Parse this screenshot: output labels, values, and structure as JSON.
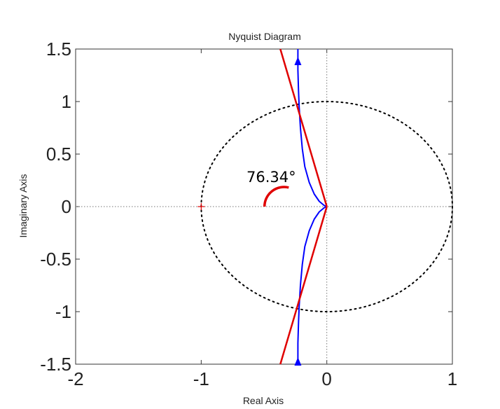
{
  "chart_data": {
    "type": "line",
    "title": "Nyquist Diagram",
    "xlabel": "Real Axis",
    "ylabel": "Imaginary Axis",
    "xlim": [
      -2,
      1
    ],
    "ylim": [
      -1.5,
      1.5
    ],
    "xticks": [
      -2,
      -1,
      0,
      1
    ],
    "xtick_labels": [
      "-2",
      "-1",
      "0",
      "1"
    ],
    "yticks": [
      -1.5,
      -1,
      -0.5,
      0,
      0.5,
      1,
      1.5
    ],
    "ytick_labels": [
      "-1.5",
      "-1",
      "-0.5",
      "0",
      "0.5",
      "1",
      "1.5"
    ],
    "grid": false,
    "critical_point": {
      "x": -1,
      "y": 0,
      "color": "#e00000"
    },
    "unit_circle": {
      "center": [
        0,
        0
      ],
      "radius": 1,
      "color": "#000000"
    },
    "nyquist_upper": {
      "color": "#0000ff",
      "points": [
        [
          -0.23,
          1.5
        ],
        [
          -0.23,
          1.3
        ],
        [
          -0.225,
          1.1
        ],
        [
          -0.22,
          0.95
        ],
        [
          -0.21,
          0.75
        ],
        [
          -0.195,
          0.55
        ],
        [
          -0.175,
          0.38
        ],
        [
          -0.14,
          0.23
        ],
        [
          -0.1,
          0.12
        ],
        [
          -0.06,
          0.05
        ],
        [
          -0.02,
          0.01
        ],
        [
          0,
          0
        ]
      ]
    },
    "nyquist_lower": {
      "color": "#0000ff",
      "points": [
        [
          0,
          0
        ],
        [
          -0.02,
          -0.01
        ],
        [
          -0.06,
          -0.05
        ],
        [
          -0.1,
          -0.12
        ],
        [
          -0.14,
          -0.23
        ],
        [
          -0.175,
          -0.38
        ],
        [
          -0.195,
          -0.55
        ],
        [
          -0.21,
          -0.75
        ],
        [
          -0.22,
          -0.95
        ],
        [
          -0.225,
          -1.1
        ],
        [
          -0.23,
          -1.3
        ],
        [
          -0.23,
          -1.5
        ]
      ]
    },
    "arrow_up": {
      "x": -0.23,
      "y": 1.38
    },
    "arrow_down": {
      "x": -0.23,
      "y": -1.48
    },
    "tangent_lines": {
      "color": "#e00000",
      "upper": [
        [
          -0.37,
          1.5
        ],
        [
          0,
          0
        ]
      ],
      "lower": [
        [
          -0.37,
          -1.5
        ],
        [
          0,
          0
        ]
      ]
    },
    "angle_arc": {
      "center": [
        -0.34,
        0
      ],
      "radius": 0.2,
      "angle_deg": 76.34,
      "color": "#e00000"
    },
    "angle_label": "76.34°"
  }
}
